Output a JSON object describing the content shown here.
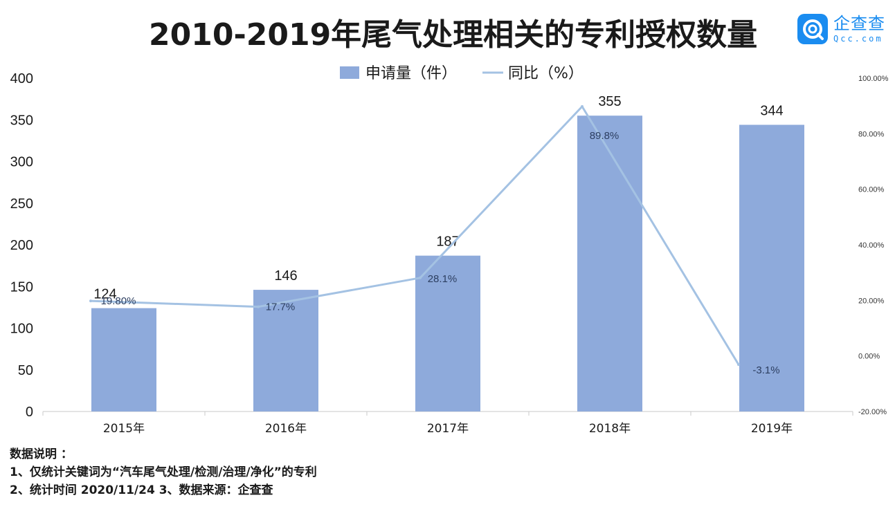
{
  "chart_data": {
    "type": "bar",
    "title": "2010-2019年尾气处理相关的专利授权数量",
    "categories": [
      "2015年",
      "2016年",
      "2017年",
      "2018年",
      "2019年"
    ],
    "series": [
      {
        "name": "申请量（件）",
        "type": "bar",
        "axis": "left",
        "color": "#8eaadb",
        "values": [
          124,
          146,
          187,
          355,
          344
        ],
        "labels": [
          "124",
          "146",
          "187",
          "355",
          "344"
        ]
      },
      {
        "name": "同比（%）",
        "type": "line",
        "axis": "right",
        "color": "#a4c2e3",
        "values": [
          19.8,
          17.7,
          28.1,
          89.8,
          -3.1
        ],
        "labels": [
          "19.80%",
          "17.7%",
          "28.1%",
          "89.8%",
          "-3.1%"
        ]
      }
    ],
    "y_left": {
      "min": 0,
      "max": 400,
      "ticks": [
        "0",
        "50",
        "100",
        "150",
        "200",
        "250",
        "300",
        "350",
        "400"
      ],
      "tick_values": [
        0,
        50,
        100,
        150,
        200,
        250,
        300,
        350,
        400
      ]
    },
    "y_right": {
      "min": -20,
      "max": 100,
      "ticks": [
        "-20.00%",
        "0.00%",
        "20.00%",
        "40.00%",
        "60.00%",
        "80.00%",
        "100.00%"
      ],
      "tick_values": [
        -20,
        0,
        20,
        40,
        60,
        80,
        100
      ]
    },
    "legend_position": "top-center",
    "grid": false
  },
  "logo": {
    "name_cn": "企查查",
    "name_en": "Qcc.com"
  },
  "notes": {
    "heading": "数据说明 ：",
    "line1": "1、仅统计关键词为“汽车尾气处理/检测/治理/净化”的专利",
    "line2": "2、统计时间 2020/11/24  3、数据来源：企查查"
  }
}
